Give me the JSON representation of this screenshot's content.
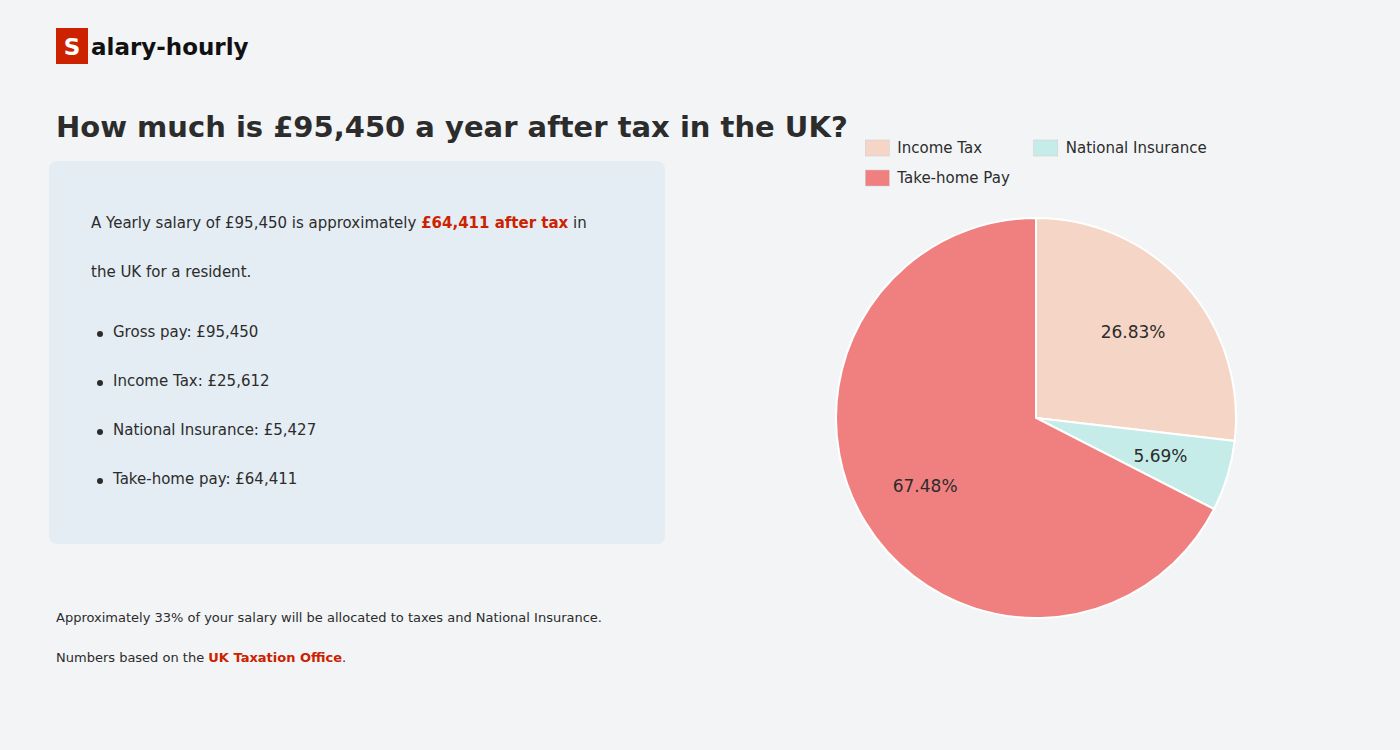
{
  "page": {
    "background": "#f2f4f6",
    "text_color": "#2c2c2c",
    "logo": {
      "initial": "S",
      "rest": "alary-hourly",
      "initial_background": "#cc2200",
      "rest_color": "#111111"
    },
    "info_box": {
      "background": "#e4ecf4",
      "lines": [
        [
          {
            "text": "A Yearly salary of £95,450 is approximately "
          },
          {
            "text": "£64,411 after tax",
            "color": "#cc2200",
            "bold": true
          },
          {
            "text": " in"
          }
        ],
        [
          {
            "text": "the UK for a resident."
          }
        ]
      ],
      "bullets": [
        "Gross pay: £95,450",
        "Income Tax: £25,612",
        "National Insurance: £5,427",
        "Take-home pay: £64,411"
      ]
    },
    "footer": [
      [
        {
          "text": "Approximately 33% of your salary will be allocated to taxes and National Insurance."
        }
      ],
      [
        {
          "text": "Numbers based on the "
        },
        {
          "text": "UK Taxation Office",
          "color": "#cc2200",
          "bold": true
        },
        {
          "text": "."
        }
      ]
    ]
  },
  "chart_data": {
    "type": "pie",
    "title": "How much is £95,450 a year after tax in the UK?",
    "categories": [
      "Income Tax",
      "National Insurance",
      "Take-home Pay"
    ],
    "values": [
      26.83,
      5.69,
      67.48
    ],
    "value_labels": [
      "26.83%",
      "5.69%",
      "67.48%"
    ],
    "colors": [
      "#f5d5c5",
      "#c5ece8",
      "#f08080"
    ],
    "data_labels": true,
    "legend": "top"
  }
}
